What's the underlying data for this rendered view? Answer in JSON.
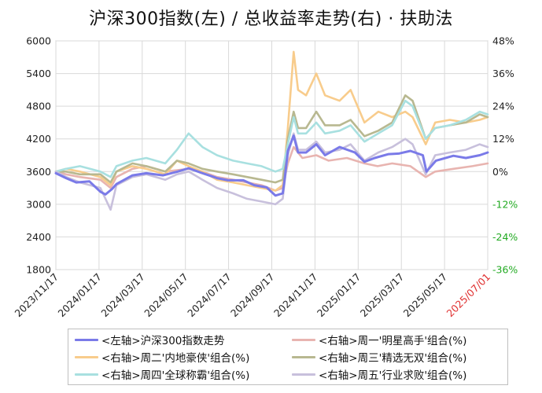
{
  "chart_data": {
    "type": "line",
    "title": "沪深300指数(左)  /  总收益率走势(右) · 扶助法",
    "x_tick_labels": [
      "2023/11/17",
      "2024/01/17",
      "2024/03/17",
      "2024/05/17",
      "2024/07/17",
      "2024/09/17",
      "2024/11/17",
      "2025/01/17",
      "2025/03/17",
      "2025/05/17",
      "2025/07/01"
    ],
    "x_highlight_label": "2025/07/01",
    "x_highlight_color": "#e03030",
    "x_range": [
      "2023-11-17",
      "2025-07-01"
    ],
    "left_axis": {
      "ticks": [
        "6000",
        "5400",
        "4800",
        "4200",
        "3600",
        "3000",
        "2400",
        "1800"
      ],
      "ylim": [
        1800,
        6000
      ]
    },
    "right_axis": {
      "ticks": [
        "48%",
        "36%",
        "24%",
        "12%",
        "0%",
        "-12%",
        "-24%",
        "-36%"
      ],
      "ylim": [
        -36,
        48
      ],
      "positive_color": "#222222",
      "negative_color": "#22aa22"
    },
    "grid": true,
    "legend_position": "bottom",
    "series": [
      {
        "name": "<左轴>沪深300指数走势",
        "axis": "left",
        "color": "#7a7ae8",
        "points": [
          [
            "2023-11-17",
            3570
          ],
          [
            "2023-12-01",
            3480
          ],
          [
            "2023-12-15",
            3400
          ],
          [
            "2024-01-02",
            3420
          ],
          [
            "2024-01-17",
            3230
          ],
          [
            "2024-01-24",
            3180
          ],
          [
            "2024-02-02",
            3280
          ],
          [
            "2024-02-08",
            3370
          ],
          [
            "2024-03-01",
            3530
          ],
          [
            "2024-03-20",
            3570
          ],
          [
            "2024-04-12",
            3530
          ],
          [
            "2024-05-02",
            3600
          ],
          [
            "2024-05-17",
            3660
          ],
          [
            "2024-06-03",
            3580
          ],
          [
            "2024-06-25",
            3480
          ],
          [
            "2024-07-10",
            3440
          ],
          [
            "2024-07-31",
            3440
          ],
          [
            "2024-08-15",
            3350
          ],
          [
            "2024-09-01",
            3310
          ],
          [
            "2024-09-13",
            3160
          ],
          [
            "2024-09-23",
            3200
          ],
          [
            "2024-09-26",
            3500
          ],
          [
            "2024-09-30",
            3980
          ],
          [
            "2024-10-08",
            4260
          ],
          [
            "2024-10-14",
            3950
          ],
          [
            "2024-10-25",
            3950
          ],
          [
            "2024-11-08",
            4100
          ],
          [
            "2024-11-20",
            3900
          ],
          [
            "2024-12-10",
            4050
          ],
          [
            "2024-12-31",
            3950
          ],
          [
            "2025-01-13",
            3780
          ],
          [
            "2025-01-27",
            3850
          ],
          [
            "2025-02-15",
            3920
          ],
          [
            "2025-03-01",
            3930
          ],
          [
            "2025-03-17",
            3980
          ],
          [
            "2025-04-03",
            3900
          ],
          [
            "2025-04-08",
            3600
          ],
          [
            "2025-04-21",
            3800
          ],
          [
            "2025-05-15",
            3890
          ],
          [
            "2025-06-01",
            3850
          ],
          [
            "2025-06-20",
            3900
          ],
          [
            "2025-07-01",
            3950
          ]
        ]
      },
      {
        "name": "<右轴>周一'明星高手'组合(%)",
        "axis": "right",
        "color": "#e8b4b0",
        "points": [
          [
            "2023-11-17",
            0
          ],
          [
            "2023-12-01",
            -1
          ],
          [
            "2023-12-20",
            -2
          ],
          [
            "2024-01-17",
            -3
          ],
          [
            "2024-01-31",
            -6
          ],
          [
            "2024-02-08",
            -2
          ],
          [
            "2024-03-01",
            1
          ],
          [
            "2024-03-20",
            2
          ],
          [
            "2024-04-15",
            0
          ],
          [
            "2024-05-17",
            1
          ],
          [
            "2024-06-05",
            0
          ],
          [
            "2024-06-25",
            -2
          ],
          [
            "2024-07-17",
            -3
          ],
          [
            "2024-08-05",
            -4
          ],
          [
            "2024-08-25",
            -5
          ],
          [
            "2024-09-13",
            -7
          ],
          [
            "2024-09-23",
            -6
          ],
          [
            "2024-09-30",
            3
          ],
          [
            "2024-10-08",
            9
          ],
          [
            "2024-10-20",
            5
          ],
          [
            "2024-11-08",
            6
          ],
          [
            "2024-11-25",
            4
          ],
          [
            "2024-12-20",
            5
          ],
          [
            "2025-01-13",
            3
          ],
          [
            "2025-01-31",
            2
          ],
          [
            "2025-02-20",
            3
          ],
          [
            "2025-03-17",
            2
          ],
          [
            "2025-04-07",
            -2
          ],
          [
            "2025-04-20",
            0
          ],
          [
            "2025-05-15",
            1
          ],
          [
            "2025-06-10",
            2
          ],
          [
            "2025-07-01",
            3
          ]
        ]
      },
      {
        "name": "<右轴>周二'内地豪侠'组合(%)",
        "axis": "right",
        "color": "#f8cc8c",
        "points": [
          [
            "2023-11-17",
            0
          ],
          [
            "2023-12-01",
            1
          ],
          [
            "2023-12-20",
            0
          ],
          [
            "2024-01-17",
            -2
          ],
          [
            "2024-01-31",
            -5
          ],
          [
            "2024-02-08",
            0
          ],
          [
            "2024-03-01",
            2
          ],
          [
            "2024-03-20",
            1
          ],
          [
            "2024-04-15",
            -1
          ],
          [
            "2024-05-01",
            4
          ],
          [
            "2024-05-17",
            2
          ],
          [
            "2024-06-05",
            0
          ],
          [
            "2024-06-25",
            -3
          ],
          [
            "2024-07-17",
            -4
          ],
          [
            "2024-08-05",
            -5
          ],
          [
            "2024-08-25",
            -6
          ],
          [
            "2024-09-13",
            -7
          ],
          [
            "2024-09-23",
            -5
          ],
          [
            "2024-09-30",
            16
          ],
          [
            "2024-10-08",
            44
          ],
          [
            "2024-10-14",
            30
          ],
          [
            "2024-10-25",
            28
          ],
          [
            "2024-11-08",
            36
          ],
          [
            "2024-11-20",
            28
          ],
          [
            "2024-12-10",
            26
          ],
          [
            "2024-12-25",
            30
          ],
          [
            "2025-01-13",
            18
          ],
          [
            "2025-02-01",
            22
          ],
          [
            "2025-02-20",
            20
          ],
          [
            "2025-03-10",
            22
          ],
          [
            "2025-03-20",
            20
          ],
          [
            "2025-04-07",
            10
          ],
          [
            "2025-04-20",
            18
          ],
          [
            "2025-05-10",
            19
          ],
          [
            "2025-06-01",
            18
          ],
          [
            "2025-06-20",
            19
          ],
          [
            "2025-07-01",
            20
          ]
        ]
      },
      {
        "name": "<右轴>周三'精选无双'组合(%)",
        "axis": "right",
        "color": "#b8b890",
        "points": [
          [
            "2023-11-17",
            0
          ],
          [
            "2023-12-01",
            0
          ],
          [
            "2023-12-20",
            -1
          ],
          [
            "2024-01-17",
            -1
          ],
          [
            "2024-01-31",
            -4
          ],
          [
            "2024-02-08",
            0
          ],
          [
            "2024-03-01",
            3
          ],
          [
            "2024-03-20",
            2
          ],
          [
            "2024-04-15",
            0
          ],
          [
            "2024-05-01",
            4
          ],
          [
            "2024-05-17",
            3
          ],
          [
            "2024-06-05",
            1
          ],
          [
            "2024-06-25",
            0
          ],
          [
            "2024-07-17",
            -1
          ],
          [
            "2024-08-05",
            -2
          ],
          [
            "2024-08-25",
            -3
          ],
          [
            "2024-09-13",
            -4
          ],
          [
            "2024-09-23",
            -3
          ],
          [
            "2024-09-30",
            12
          ],
          [
            "2024-10-08",
            22
          ],
          [
            "2024-10-14",
            16
          ],
          [
            "2024-10-25",
            16
          ],
          [
            "2024-11-08",
            22
          ],
          [
            "2024-11-20",
            17
          ],
          [
            "2024-12-10",
            17
          ],
          [
            "2024-12-25",
            19
          ],
          [
            "2025-01-13",
            13
          ],
          [
            "2025-02-01",
            15
          ],
          [
            "2025-02-20",
            18
          ],
          [
            "2025-03-10",
            28
          ],
          [
            "2025-03-20",
            26
          ],
          [
            "2025-04-07",
            12
          ],
          [
            "2025-04-20",
            16
          ],
          [
            "2025-05-10",
            17
          ],
          [
            "2025-06-01",
            18
          ],
          [
            "2025-06-20",
            21
          ],
          [
            "2025-07-01",
            20
          ]
        ]
      },
      {
        "name": "<右轴>周四'全球称霸'组合(%)",
        "axis": "right",
        "color": "#a8e0e0",
        "points": [
          [
            "2023-11-17",
            0
          ],
          [
            "2023-12-01",
            1
          ],
          [
            "2023-12-20",
            2
          ],
          [
            "2024-01-17",
            0
          ],
          [
            "2024-01-31",
            -2
          ],
          [
            "2024-02-08",
            2
          ],
          [
            "2024-03-01",
            4
          ],
          [
            "2024-03-20",
            5
          ],
          [
            "2024-04-15",
            3
          ],
          [
            "2024-05-01",
            8
          ],
          [
            "2024-05-17",
            14
          ],
          [
            "2024-06-05",
            9
          ],
          [
            "2024-06-25",
            6
          ],
          [
            "2024-07-17",
            4
          ],
          [
            "2024-08-05",
            3
          ],
          [
            "2024-08-25",
            2
          ],
          [
            "2024-09-13",
            0
          ],
          [
            "2024-09-23",
            1
          ],
          [
            "2024-09-30",
            10
          ],
          [
            "2024-10-08",
            20
          ],
          [
            "2024-10-14",
            14
          ],
          [
            "2024-10-25",
            14
          ],
          [
            "2024-11-08",
            18
          ],
          [
            "2024-11-20",
            14
          ],
          [
            "2024-12-10",
            15
          ],
          [
            "2024-12-25",
            17
          ],
          [
            "2025-01-13",
            11
          ],
          [
            "2025-02-01",
            14
          ],
          [
            "2025-02-20",
            17
          ],
          [
            "2025-03-10",
            26
          ],
          [
            "2025-03-20",
            24
          ],
          [
            "2025-04-07",
            12
          ],
          [
            "2025-04-20",
            16
          ],
          [
            "2025-05-10",
            17
          ],
          [
            "2025-06-01",
            19
          ],
          [
            "2025-06-20",
            22
          ],
          [
            "2025-07-01",
            21
          ]
        ]
      },
      {
        "name": "<右轴>周五'行业求败'组合(%)",
        "axis": "right",
        "color": "#c8c0dc",
        "points": [
          [
            "2023-11-17",
            0
          ],
          [
            "2023-12-01",
            -2
          ],
          [
            "2023-12-20",
            -4
          ],
          [
            "2024-01-17",
            -6
          ],
          [
            "2024-01-31",
            -14
          ],
          [
            "2024-02-08",
            -5
          ],
          [
            "2024-03-01",
            -2
          ],
          [
            "2024-03-20",
            -1
          ],
          [
            "2024-04-15",
            -3
          ],
          [
            "2024-05-01",
            -1
          ],
          [
            "2024-05-17",
            0
          ],
          [
            "2024-06-05",
            -3
          ],
          [
            "2024-06-25",
            -6
          ],
          [
            "2024-07-17",
            -8
          ],
          [
            "2024-08-05",
            -10
          ],
          [
            "2024-08-25",
            -11
          ],
          [
            "2024-09-13",
            -12
          ],
          [
            "2024-09-23",
            -10
          ],
          [
            "2024-09-30",
            6
          ],
          [
            "2024-10-08",
            14
          ],
          [
            "2024-10-14",
            8
          ],
          [
            "2024-10-25",
            8
          ],
          [
            "2024-11-08",
            11
          ],
          [
            "2024-11-20",
            7
          ],
          [
            "2024-12-10",
            8
          ],
          [
            "2024-12-25",
            10
          ],
          [
            "2025-01-13",
            4
          ],
          [
            "2025-02-01",
            7
          ],
          [
            "2025-02-20",
            9
          ],
          [
            "2025-03-10",
            12
          ],
          [
            "2025-03-20",
            10
          ],
          [
            "2025-04-07",
            -1
          ],
          [
            "2025-04-20",
            6
          ],
          [
            "2025-05-10",
            7
          ],
          [
            "2025-06-01",
            8
          ],
          [
            "2025-06-20",
            10
          ],
          [
            "2025-07-01",
            9
          ]
        ]
      }
    ],
    "legend_order": [
      0,
      1,
      2,
      3,
      4,
      5
    ]
  }
}
